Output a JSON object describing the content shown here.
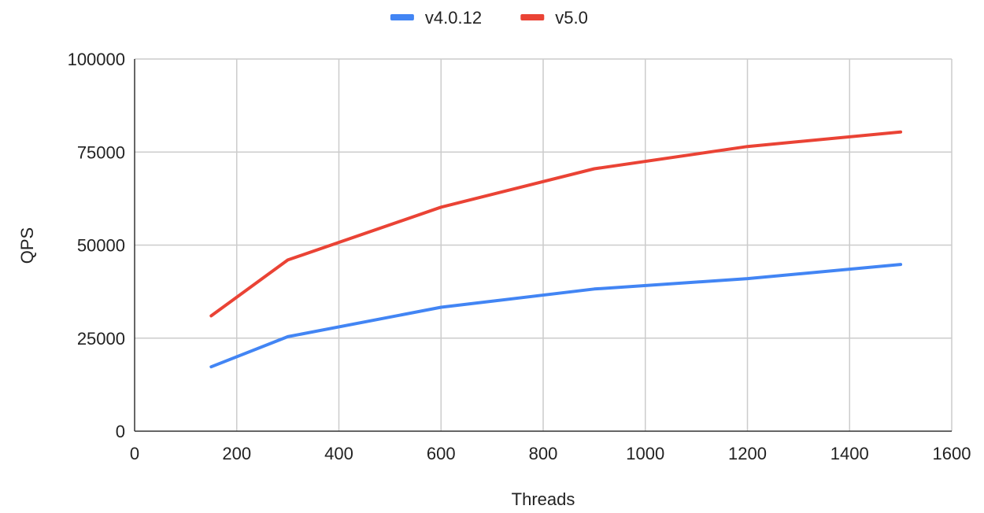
{
  "chart_data": {
    "type": "line",
    "xlabel": "Threads",
    "ylabel": "QPS",
    "xlim": [
      0,
      1600
    ],
    "ylim": [
      0,
      100000
    ],
    "xticks": [
      0,
      200,
      400,
      600,
      800,
      1000,
      1200,
      1400,
      1600
    ],
    "yticks": [
      0,
      25000,
      50000,
      75000,
      100000
    ],
    "x": [
      150,
      300,
      600,
      900,
      1200,
      1500
    ],
    "series": [
      {
        "name": "v4.0.12",
        "color": "#4285f4",
        "values": [
          17300,
          25400,
          33300,
          38200,
          41000,
          44800
        ]
      },
      {
        "name": "v5.0",
        "color": "#ea4335",
        "values": [
          31000,
          46000,
          60200,
          70500,
          76500,
          80400
        ]
      }
    ],
    "grid": true,
    "legend": "top-center"
  }
}
